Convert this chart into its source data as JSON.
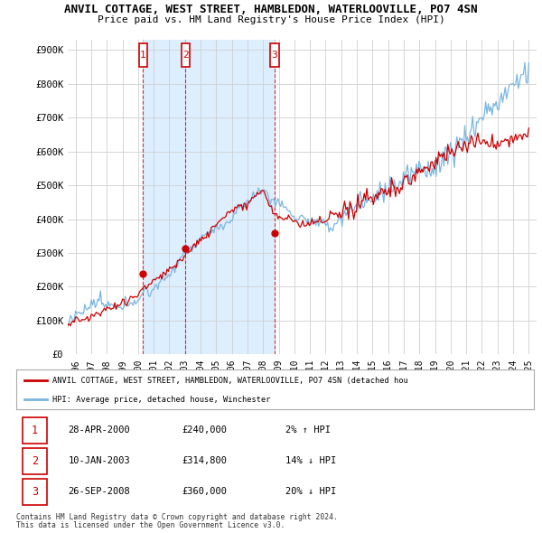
{
  "title": "ANVIL COTTAGE, WEST STREET, HAMBLEDON, WATERLOOVILLE, PO7 4SN",
  "subtitle": "Price paid vs. HM Land Registry's House Price Index (HPI)",
  "ylim": [
    0,
    930000
  ],
  "yticks": [
    0,
    100000,
    200000,
    300000,
    400000,
    500000,
    600000,
    700000,
    800000,
    900000
  ],
  "ytick_labels": [
    "£0",
    "£100K",
    "£200K",
    "£300K",
    "£400K",
    "£500K",
    "£600K",
    "£700K",
    "£800K",
    "£900K"
  ],
  "hpi_color": "#7ab6e0",
  "price_color": "#cc0000",
  "bg_color": "#ffffff",
  "grid_color": "#d0d0d0",
  "shading_color": "#ddeeff",
  "purchases": [
    {
      "year": 2000.32,
      "price": 240000,
      "label": "1"
    },
    {
      "year": 2003.03,
      "price": 314800,
      "label": "2"
    },
    {
      "year": 2008.74,
      "price": 360000,
      "label": "3"
    }
  ],
  "xmin": 1995.5,
  "xmax": 2025.5,
  "legend_entry1": "ANVIL COTTAGE, WEST STREET, HAMBLEDON, WATERLOOVILLE, PO7 4SN (detached hou",
  "legend_entry2": "HPI: Average price, detached house, Winchester",
  "footer1": "Contains HM Land Registry data © Crown copyright and database right 2024.",
  "footer2": "This data is licensed under the Open Government Licence v3.0.",
  "table": [
    {
      "num": "1",
      "date": "28-APR-2000",
      "price": "£240,000",
      "hpi": "2% ↑ HPI"
    },
    {
      "num": "2",
      "date": "10-JAN-2003",
      "price": "£314,800",
      "hpi": "14% ↓ HPI"
    },
    {
      "num": "3",
      "date": "26-SEP-2008",
      "price": "£360,000",
      "hpi": "20% ↓ HPI"
    }
  ]
}
